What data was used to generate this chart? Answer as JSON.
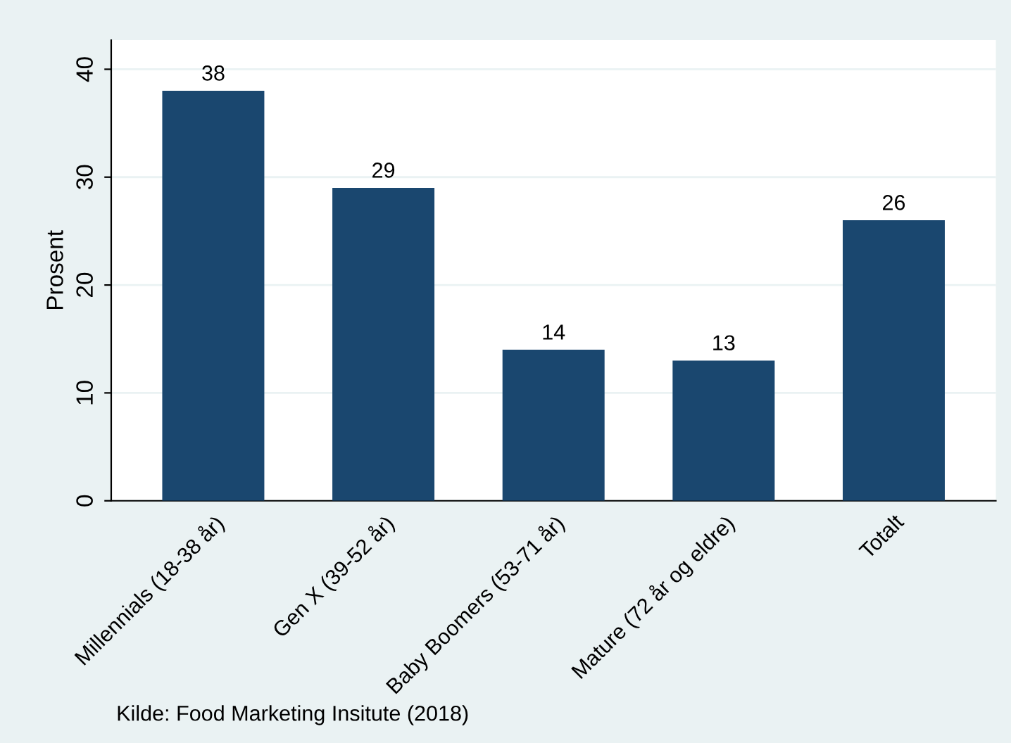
{
  "chart_data": {
    "type": "bar",
    "ylabel": "Prosent",
    "categories": [
      "Millennials (18-38 år)",
      "Gen X (39-52 år)",
      "Baby Boomers (53-71 år)",
      "Mature (72 år og eldre)",
      "Totalt"
    ],
    "values": [
      38,
      29,
      14,
      13,
      26
    ],
    "color": "#1a476f",
    "data_labels": true,
    "ylim": [
      0,
      42.7
    ],
    "yticks": [
      0,
      10,
      20,
      30,
      40
    ],
    "grid": "y",
    "annotations": [
      "Kilde: Food Marketing Insitute (2018)"
    ]
  }
}
